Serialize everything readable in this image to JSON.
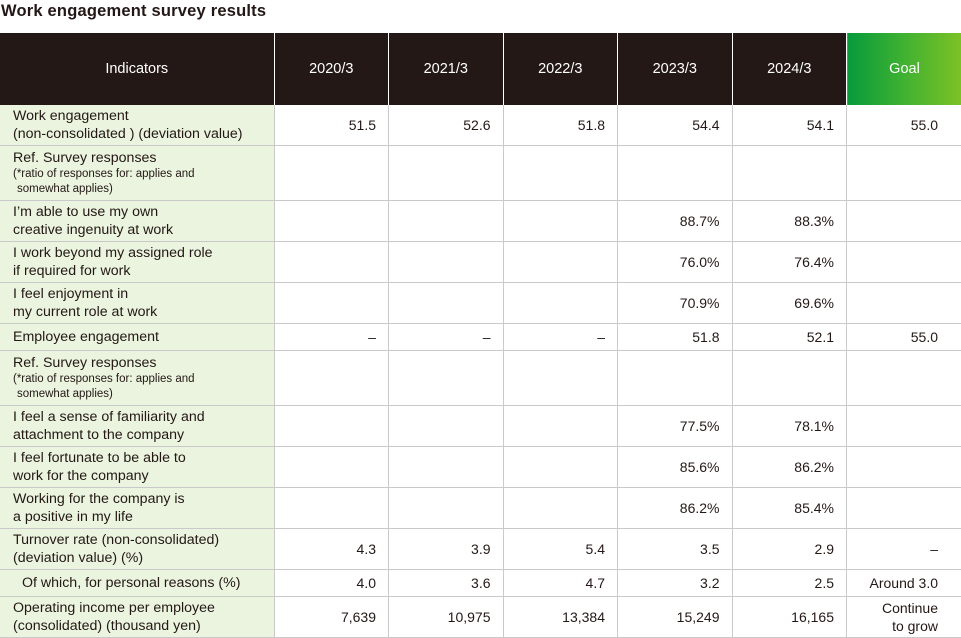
{
  "title": "Work engagement survey results",
  "columns": {
    "indicators": "Indicators",
    "years": [
      "2020/3",
      "2021/3",
      "2022/3",
      "2023/3",
      "2024/3"
    ],
    "goal": "Goal"
  },
  "rows": [
    {
      "label1": "Work engagement",
      "label2": "(non-consolidated ) (deviation value)",
      "values": [
        "51.5",
        "52.6",
        "51.8",
        "54.4",
        "54.1"
      ],
      "goal": "55.0"
    },
    {
      "label1": "Ref. Survey responses",
      "note1": "(*ratio of responses for: applies and",
      "note2": "somewhat applies)"
    },
    {
      "label1": "I’m able to use my own",
      "label2": "creative ingenuity at work",
      "values": [
        "",
        "",
        "",
        "88.7%",
        "88.3%"
      ],
      "goal": ""
    },
    {
      "label1": "I work beyond my assigned role",
      "label2": "if required for work",
      "values": [
        "",
        "",
        "",
        "76.0%",
        "76.4%"
      ],
      "goal": ""
    },
    {
      "label1": "I feel enjoyment in",
      "label2": "my current role at work",
      "values": [
        "",
        "",
        "",
        "70.9%",
        "69.6%"
      ],
      "goal": ""
    },
    {
      "label1": "Employee engagement",
      "values": [
        "–",
        "–",
        "–",
        "51.8",
        "52.1"
      ],
      "goal": "55.0"
    },
    {
      "label1": "Ref. Survey responses",
      "note1": "(*ratio of responses for: applies and",
      "note2": "somewhat applies)"
    },
    {
      "label1": "I feel a sense of familiarity and",
      "label2": "attachment to the company",
      "values": [
        "",
        "",
        "",
        "77.5%",
        "78.1%"
      ],
      "goal": ""
    },
    {
      "label1": "I feel fortunate to be able to",
      "label2": "work for the company",
      "values": [
        "",
        "",
        "",
        "85.6%",
        "86.2%"
      ],
      "goal": ""
    },
    {
      "label1": "Working for the company is",
      "label2": "a positive in my life",
      "values": [
        "",
        "",
        "",
        "86.2%",
        "85.4%"
      ],
      "goal": ""
    },
    {
      "label1": "Turnover rate (non-consolidated)",
      "label2": "(deviation value) (%)",
      "values": [
        "4.3",
        "3.9",
        "5.4",
        "3.5",
        "2.9"
      ],
      "goal": "–"
    },
    {
      "label1": "Of which, for personal reasons (%)",
      "values": [
        "4.0",
        "3.6",
        "4.7",
        "3.2",
        "2.5"
      ],
      "goal": "Around 3.0"
    },
    {
      "label1": "Operating income per employee",
      "label2": "(consolidated) (thousand yen)",
      "values": [
        "7,639",
        "10,975",
        "13,384",
        "15,249",
        "16,165"
      ],
      "goal": "Continue",
      "goal2": "to grow"
    }
  ]
}
